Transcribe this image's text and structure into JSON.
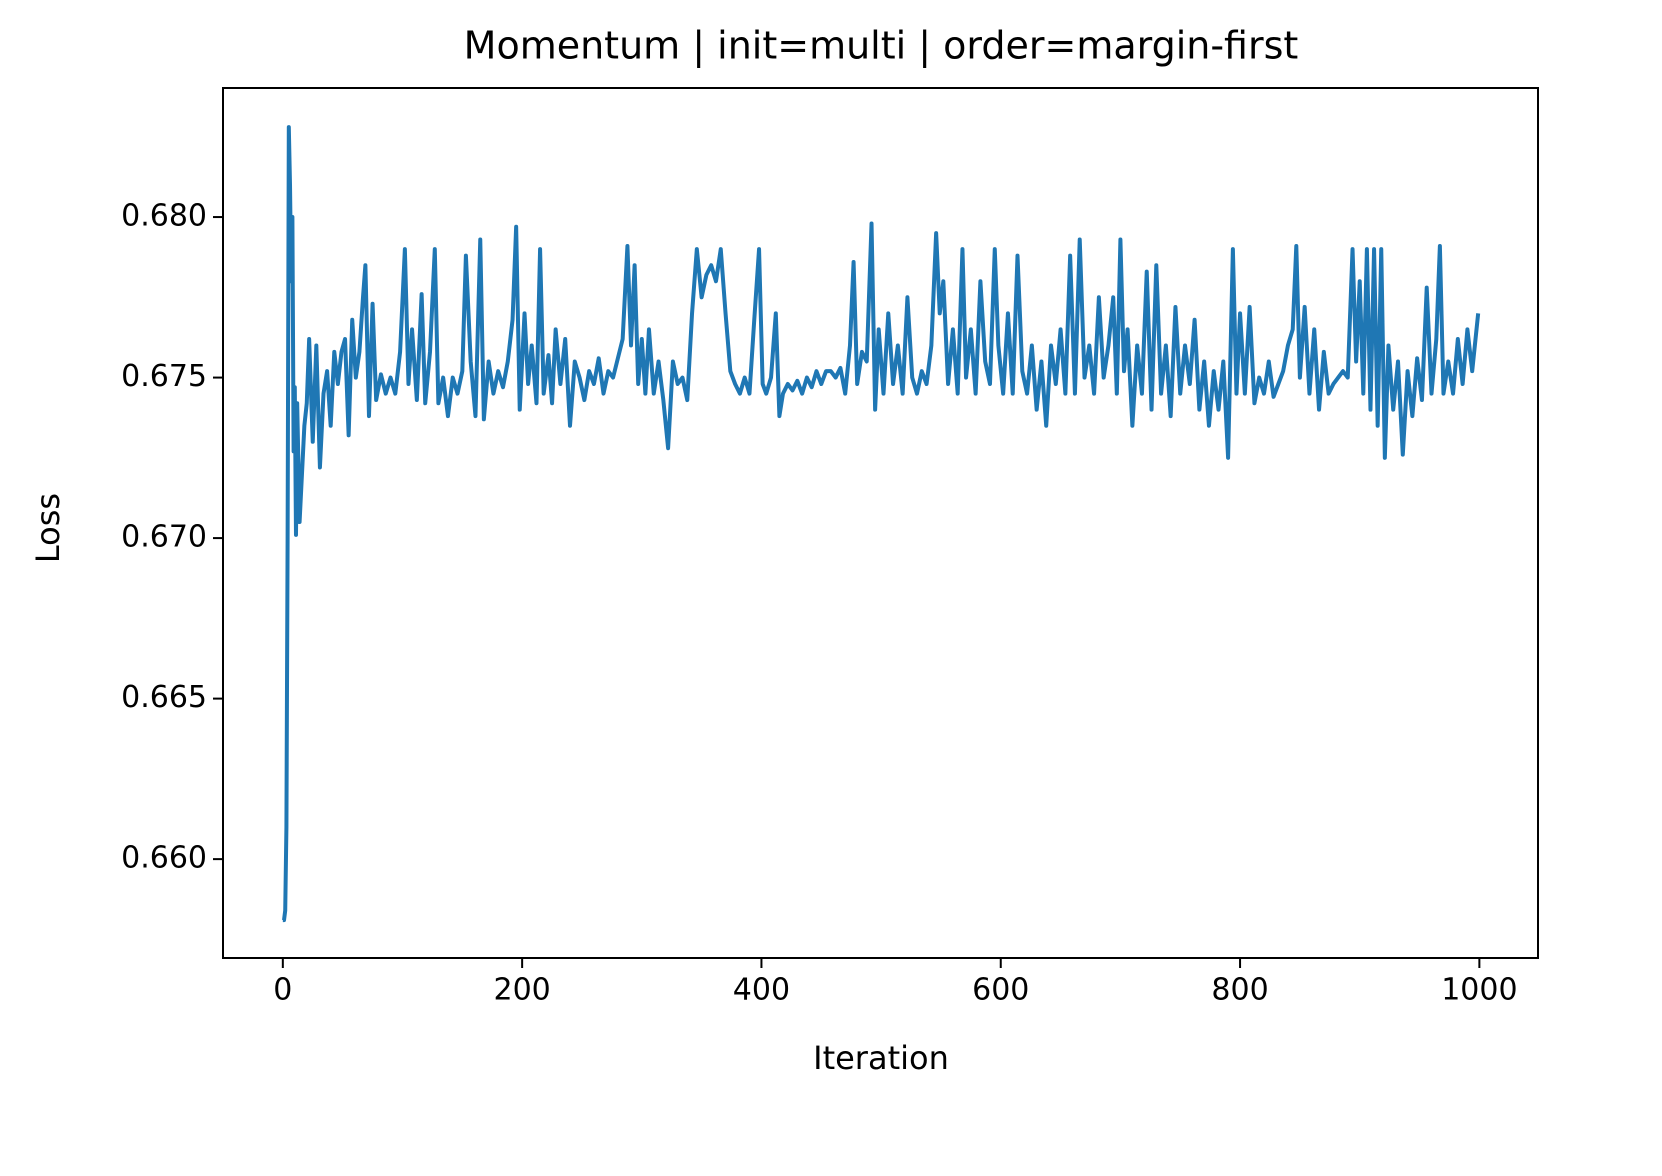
{
  "chart_data": {
    "type": "line",
    "title": "Momentum | init=multi | order=margin-first",
    "x_label": "Iteration",
    "y_label": "Loss",
    "color": "#1f77b4",
    "x": [
      0,
      1,
      2,
      3,
      4,
      5,
      6,
      7,
      8,
      9,
      10,
      11,
      12,
      14,
      18,
      20,
      22,
      25,
      28,
      31,
      34,
      37,
      40,
      43,
      46,
      49,
      52,
      55,
      58,
      61,
      64,
      67,
      69,
      72,
      75,
      78,
      82,
      86,
      90,
      94,
      98,
      102,
      105,
      108,
      112,
      116,
      119,
      123,
      127,
      130,
      134,
      138,
      142,
      146,
      150,
      153,
      157,
      161,
      165,
      168,
      172,
      176,
      180,
      184,
      188,
      192,
      195,
      198,
      202,
      205,
      208,
      212,
      215,
      218,
      222,
      225,
      228,
      232,
      236,
      240,
      244,
      248,
      252,
      256,
      260,
      264,
      268,
      272,
      276,
      280,
      284,
      288,
      291,
      294,
      297,
      300,
      303,
      306,
      310,
      314,
      318,
      322,
      326,
      330,
      334,
      338,
      342,
      346,
      350,
      354,
      358,
      362,
      366,
      370,
      374,
      378,
      382,
      386,
      390,
      394,
      398,
      401,
      404,
      408,
      412,
      415,
      418,
      422,
      426,
      430,
      434,
      438,
      442,
      446,
      450,
      454,
      458,
      462,
      466,
      470,
      474,
      477,
      480,
      484,
      488,
      492,
      495,
      498,
      502,
      506,
      510,
      514,
      518,
      522,
      526,
      530,
      534,
      538,
      542,
      546,
      549,
      552,
      556,
      560,
      564,
      568,
      571,
      575,
      579,
      583,
      587,
      591,
      595,
      598,
      602,
      606,
      610,
      614,
      618,
      622,
      626,
      630,
      634,
      638,
      642,
      646,
      650,
      654,
      658,
      662,
      666,
      670,
      674,
      678,
      682,
      686,
      690,
      694,
      697,
      700,
      703,
      706,
      710,
      714,
      718,
      722,
      726,
      730,
      734,
      738,
      742,
      746,
      750,
      754,
      758,
      762,
      766,
      770,
      774,
      778,
      782,
      786,
      790,
      794,
      797,
      800,
      804,
      808,
      812,
      816,
      820,
      824,
      828,
      832,
      836,
      840,
      844,
      847,
      850,
      854,
      858,
      862,
      866,
      870,
      874,
      878,
      882,
      886,
      890,
      894,
      897,
      900,
      903,
      906,
      909,
      912,
      915,
      918,
      921,
      924,
      928,
      932,
      936,
      940,
      944,
      948,
      952,
      956,
      960,
      964,
      967,
      970,
      974,
      978,
      982,
      986,
      990,
      994,
      999
    ],
    "values": [
      0.6581,
      0.6581,
      0.6584,
      0.661,
      0.67,
      0.6828,
      0.681,
      0.678,
      0.68,
      0.6727,
      0.6747,
      0.6701,
      0.6742,
      0.6705,
      0.6735,
      0.6742,
      0.6762,
      0.673,
      0.676,
      0.6722,
      0.6745,
      0.6752,
      0.6735,
      0.6758,
      0.6748,
      0.6758,
      0.6762,
      0.6732,
      0.6768,
      0.675,
      0.6758,
      0.6775,
      0.6785,
      0.6738,
      0.6773,
      0.6743,
      0.6751,
      0.6745,
      0.675,
      0.6745,
      0.6758,
      0.679,
      0.6748,
      0.6765,
      0.6743,
      0.6776,
      0.6742,
      0.6758,
      0.679,
      0.6742,
      0.675,
      0.6738,
      0.675,
      0.6745,
      0.6752,
      0.6788,
      0.6755,
      0.6738,
      0.6793,
      0.6737,
      0.6755,
      0.6745,
      0.6752,
      0.6747,
      0.6755,
      0.6768,
      0.6797,
      0.674,
      0.677,
      0.6748,
      0.676,
      0.6742,
      0.679,
      0.6745,
      0.6757,
      0.6742,
      0.6765,
      0.6748,
      0.6762,
      0.6735,
      0.6755,
      0.675,
      0.6743,
      0.6752,
      0.6748,
      0.6756,
      0.6745,
      0.6752,
      0.675,
      0.6756,
      0.6762,
      0.6791,
      0.676,
      0.6785,
      0.6748,
      0.6762,
      0.6745,
      0.6765,
      0.6745,
      0.6755,
      0.6743,
      0.6728,
      0.6755,
      0.6748,
      0.675,
      0.6743,
      0.677,
      0.679,
      0.6775,
      0.6782,
      0.6785,
      0.678,
      0.679,
      0.677,
      0.6752,
      0.6748,
      0.6745,
      0.675,
      0.6745,
      0.6768,
      0.679,
      0.6748,
      0.6745,
      0.675,
      0.677,
      0.6738,
      0.6745,
      0.6748,
      0.6746,
      0.6749,
      0.6745,
      0.675,
      0.6747,
      0.6752,
      0.6748,
      0.6752,
      0.6752,
      0.675,
      0.6753,
      0.6745,
      0.676,
      0.6786,
      0.6748,
      0.6758,
      0.6755,
      0.6798,
      0.674,
      0.6765,
      0.6745,
      0.677,
      0.6748,
      0.676,
      0.6745,
      0.6775,
      0.675,
      0.6745,
      0.6752,
      0.6748,
      0.676,
      0.6795,
      0.677,
      0.678,
      0.6748,
      0.6765,
      0.6745,
      0.679,
      0.675,
      0.6765,
      0.6745,
      0.678,
      0.6755,
      0.6748,
      0.679,
      0.676,
      0.6745,
      0.677,
      0.6745,
      0.6788,
      0.6752,
      0.6745,
      0.676,
      0.674,
      0.6755,
      0.6735,
      0.676,
      0.6748,
      0.6765,
      0.6745,
      0.6788,
      0.6745,
      0.6793,
      0.675,
      0.676,
      0.6745,
      0.6775,
      0.675,
      0.676,
      0.6775,
      0.6745,
      0.6793,
      0.6752,
      0.6765,
      0.6735,
      0.676,
      0.6745,
      0.6783,
      0.674,
      0.6785,
      0.6745,
      0.676,
      0.6738,
      0.6772,
      0.6745,
      0.676,
      0.6748,
      0.6768,
      0.674,
      0.6755,
      0.6735,
      0.6752,
      0.674,
      0.6755,
      0.6725,
      0.679,
      0.6745,
      0.677,
      0.6745,
      0.6772,
      0.6742,
      0.675,
      0.6745,
      0.6755,
      0.6744,
      0.6748,
      0.6752,
      0.676,
      0.6765,
      0.6791,
      0.675,
      0.6772,
      0.6745,
      0.6765,
      0.674,
      0.6758,
      0.6745,
      0.6748,
      0.675,
      0.6752,
      0.675,
      0.679,
      0.6755,
      0.678,
      0.6745,
      0.679,
      0.674,
      0.679,
      0.6735,
      0.679,
      0.6725,
      0.676,
      0.674,
      0.6755,
      0.6726,
      0.6752,
      0.6738,
      0.6756,
      0.6743,
      0.6778,
      0.6745,
      0.6762,
      0.6791,
      0.6745,
      0.6755,
      0.6745,
      0.6762,
      0.6748,
      0.6765,
      0.6752,
      0.677
    ],
    "xlim": [
      -50,
      1049
    ],
    "ylim": [
      0.65692,
      0.68402
    ],
    "xticks": [
      0,
      200,
      400,
      600,
      800,
      1000
    ],
    "yticks": [
      {
        "value": 0.66,
        "label": "0.660"
      },
      {
        "value": 0.665,
        "label": "0.665"
      },
      {
        "value": 0.67,
        "label": "0.670"
      },
      {
        "value": 0.675,
        "label": "0.675"
      },
      {
        "value": 0.68,
        "label": "0.680"
      }
    ]
  }
}
